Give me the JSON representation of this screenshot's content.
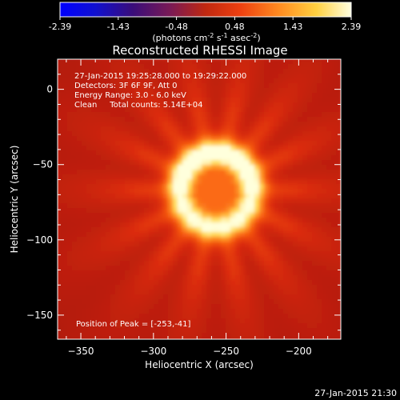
{
  "chart_data": {
    "type": "heatmap",
    "title": "Reconstructed RHESSI Image",
    "xlabel": "Heliocentric X (arcsec)",
    "ylabel": "Heliocentric Y (arcsec)",
    "xlim": [
      -366,
      -171
    ],
    "ylim": [
      -166,
      20
    ],
    "xticks": [
      -350,
      -300,
      -250,
      -200
    ],
    "yticks": [
      0,
      -50,
      -100,
      -150
    ],
    "colorbar": {
      "min": -2.39,
      "max": 2.39,
      "ticks": [
        "-2.39",
        "-1.43",
        "-0.48",
        "0.48",
        "1.43",
        "2.39"
      ],
      "unit_label": "(photons cm",
      "unit_exp1": "-2",
      "unit_mid": " s",
      "unit_exp2": "-1",
      "unit_mid2": " asec",
      "unit_exp3": "-2",
      "unit_end": ")"
    },
    "annotations": [
      "27-Jan-2015 19:25:28.000 to 19:29:22.000",
      "Detectors: 3F 6F 9F, Att 0",
      "Energy Range: 3.0 - 6.0 keV",
      "Clean     Total counts: 5.14E+04"
    ],
    "peak_label": "Position of Peak = [-253,-41]",
    "source": {
      "center_x": -257,
      "center_y": -67,
      "ring_radius": 25,
      "peak": [
        -253,
        -41
      ]
    }
  },
  "footer_timestamp": "27-Jan-2015 21:30"
}
